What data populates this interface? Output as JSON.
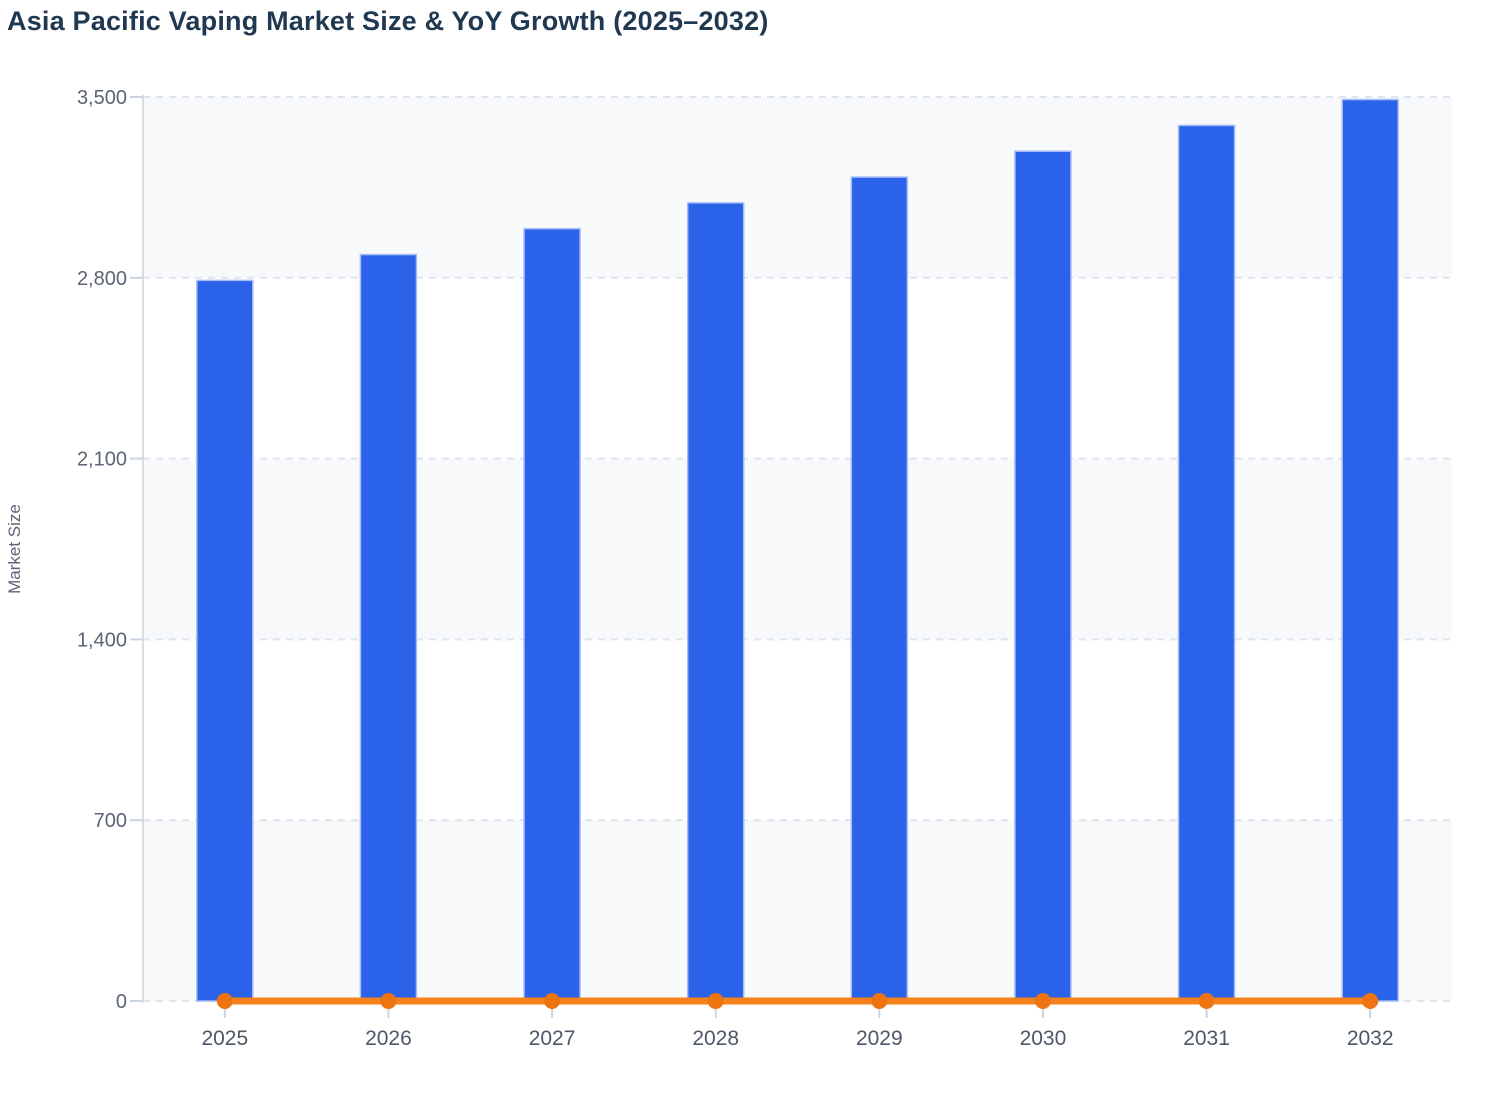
{
  "chart_data": {
    "type": "bar",
    "title": "Asia Pacific Vaping Market Size & YoY Growth (2025–2032)",
    "categories": [
      "2025",
      "2026",
      "2027",
      "2028",
      "2029",
      "2030",
      "2031",
      "2032"
    ],
    "series": [
      {
        "name": "Market Size",
        "type": "bar",
        "values": [
          2790,
          2890,
          2990,
          3090,
          3190,
          3290,
          3390,
          3490
        ]
      },
      {
        "name": "YoY Growth",
        "type": "line",
        "values": [
          0,
          0,
          0,
          0,
          0,
          0,
          0,
          0
        ],
        "note": "orange line with round markers rendered flat at ~0 on the Market Size axis; no value labels visible"
      }
    ],
    "xlabel": "",
    "ylabel": "Market Size",
    "ylim": [
      0,
      3500
    ],
    "yticks": [
      0,
      700,
      1400,
      2100,
      2800,
      3500
    ],
    "ytick_labels": [
      "0",
      "700",
      "1,400",
      "2,100",
      "2,800",
      "3,500"
    ],
    "grid": "dashed horizontal gridlines at every y tick",
    "plot_bands": "alternating horizontal bands (gray on 0–700, 1400–2100, 2800–3500)",
    "legend": "none"
  },
  "colors": {
    "bar_fill": "#2a63e9",
    "bar_border": "#a6bcf4",
    "line_orange": "#f6821d",
    "marker_orange": "#ee7311",
    "band_fill": "#f8f9fb",
    "gridline": "#dfe4ef",
    "axis_line": "#d8dee9",
    "tick_mark": "#ccd4e0",
    "title_text": "#203850",
    "y_label_text": "#5b6574",
    "x_label_text": "#4d5869"
  }
}
